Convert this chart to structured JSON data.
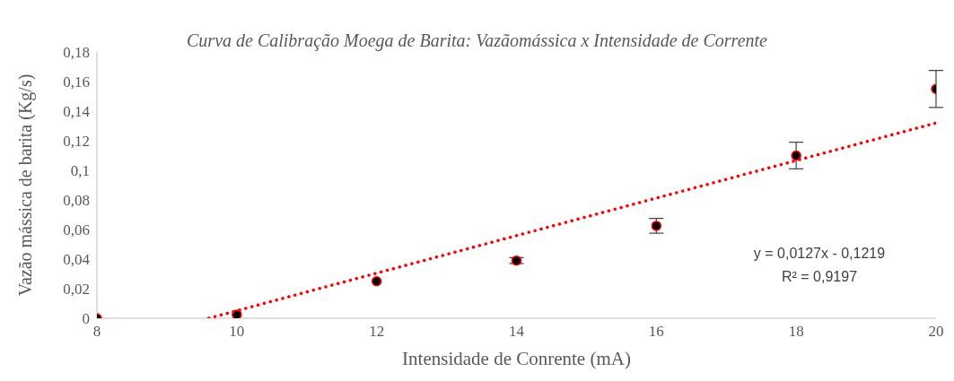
{
  "chart_data": {
    "type": "scatter",
    "title": "Curva de Calibração Moega de Barita: Vazãomássica x Intensidade de Corrente",
    "xlabel": "Intensidade de Conrente (mA)",
    "ylabel": "Vazão mássica de barita (Kg/s)",
    "x": [
      8,
      10,
      12,
      14,
      16,
      18,
      20
    ],
    "series": [
      {
        "color": "#000000",
        "values": [
          0,
          0.0025,
          0.025,
          0.039,
          0.0625,
          0.11,
          0.155
        ],
        "errors": [
          null,
          null,
          null,
          0.002,
          0.005,
          0.009,
          0.0125
        ],
        "marker": "circle"
      },
      {
        "type": "line",
        "color": "#ff0000",
        "x": [
          9.6,
          20
        ],
        "values": [
          0,
          0.132
        ],
        "line_style": "dotted",
        "marker": "none"
      }
    ],
    "annotations": [
      "y = 0,0127x - 0,1219",
      "R² = 0,9197"
    ],
    "xlim": [
      8,
      20
    ],
    "xticks": [
      8,
      10,
      12,
      14,
      16,
      18,
      20
    ],
    "ylim": [
      0,
      0.18
    ],
    "yticks": [
      0,
      {
        "value": 0.02,
        "label": "0,02"
      },
      {
        "value": 0.04,
        "label": "0,04"
      },
      {
        "value": 0.06,
        "label": "0,06"
      },
      {
        "value": 0.08,
        "label": "0,08"
      },
      {
        "value": 0.1,
        "label": "0,1"
      },
      {
        "value": 0.12,
        "label": "0,12"
      },
      {
        "value": 0.14,
        "label": "0,14"
      },
      {
        "value": 0.16,
        "label": "0,16"
      },
      {
        "value": 0.18,
        "label": "0,18"
      }
    ],
    "grid": false,
    "legend": false
  }
}
